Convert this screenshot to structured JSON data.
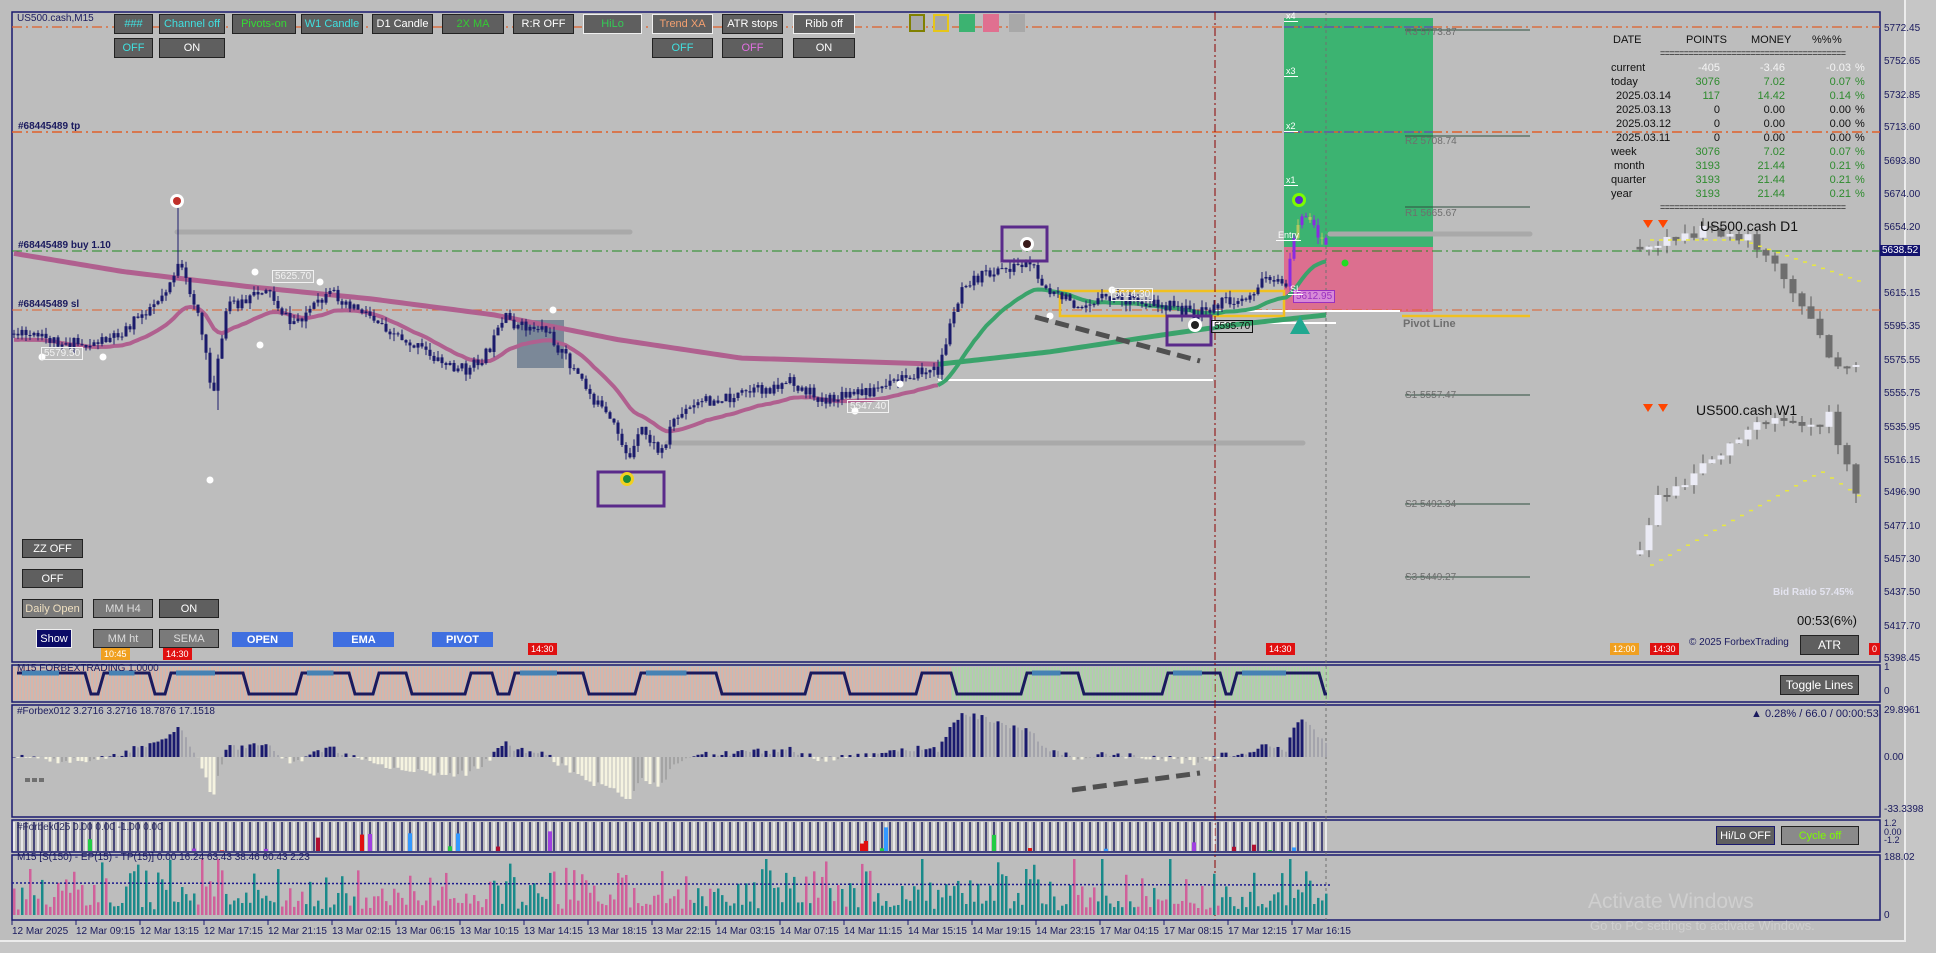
{
  "window": {
    "title": "US500.cash,M15"
  },
  "toolbar": {
    "row1": [
      {
        "label": "###",
        "color": "#40e0e0"
      },
      {
        "label": "Channel off",
        "color": "#40e0e0"
      },
      {
        "label": "Pivots-on",
        "color": "#33dd33"
      },
      {
        "label": "W1 Candle",
        "color": "#40e0e0"
      },
      {
        "label": "D1 Candle",
        "color": "#ffffff"
      },
      {
        "label": "2X MA",
        "color": "#33cc33"
      },
      {
        "label": "R:R OFF",
        "color": "#ffffff"
      },
      {
        "label": "HiLo",
        "color": "#33cc55"
      },
      {
        "label": "Trend XA",
        "color": "#f4a070"
      },
      {
        "label": "ATR stops",
        "color": "#ffffff"
      },
      {
        "label": "Ribb off",
        "color": "#ffffff"
      }
    ],
    "row2": [
      {
        "label": "OFF",
        "color": "#40e0e0"
      },
      {
        "label": "ON",
        "color": "#ffffff"
      },
      {
        "label": "OFF",
        "color": "#40e0e0"
      },
      {
        "label": "OFF",
        "color": "#e070e0"
      },
      {
        "label": "ON",
        "color": "#ffffff"
      }
    ],
    "swatches": [
      "#808000",
      "#e6c619",
      "#3cb371",
      "#e07090",
      "#a8a8a8"
    ]
  },
  "orders": {
    "tp": "#68445489 tp",
    "buy": "#68445489 buy 1.10",
    "sl": "#68445489 sl"
  },
  "price_labels": [
    "5579.50",
    "5625.70",
    "5547.40",
    "5614.30",
    "5595.70",
    "5612.95"
  ],
  "risk_reward": [
    "x4",
    "x3",
    "x2",
    "x1",
    "Entry",
    "SL"
  ],
  "pivots": {
    "r3": "R3 5773.87",
    "r2": "R2 5708.74",
    "r1": "R1 5665.67",
    "pivot": "Pivot Line",
    "s1": "S1 5557.47",
    "s2": "S2 5492.34",
    "s3": "S3 5449.27"
  },
  "stats_table": {
    "headers": [
      "DATE",
      "POINTS",
      "MONEY",
      "%%",
      "%"
    ],
    "separator": "=======================================",
    "rows": [
      {
        "date": "current",
        "points": "-405",
        "money": "-3.46",
        "pct": "-0.03",
        "unit": "%",
        "color": "#f4f4f4"
      },
      {
        "date": "today",
        "points": "3076",
        "money": "7.02",
        "pct": "0.07",
        "unit": "%",
        "color": "#2e8b2e"
      },
      {
        "date": "2025.03.14",
        "points": "117",
        "money": "14.42",
        "pct": "0.14",
        "unit": "%",
        "color": "#2e8b2e"
      },
      {
        "date": "2025.03.13",
        "points": "0",
        "money": "0.00",
        "pct": "0.00",
        "unit": "%",
        "color": "#111111"
      },
      {
        "date": "2025.03.12",
        "points": "0",
        "money": "0.00",
        "pct": "0.00",
        "unit": "%",
        "color": "#111111"
      },
      {
        "date": "2025.03.11",
        "points": "0",
        "money": "0.00",
        "pct": "0.00",
        "unit": "%",
        "color": "#111111"
      },
      {
        "date": "week",
        "points": "3076",
        "money": "7.02",
        "pct": "0.07",
        "unit": "%",
        "color": "#2e8b2e"
      },
      {
        "date": "month",
        "points": "3193",
        "money": "21.44",
        "pct": "0.21",
        "unit": "%",
        "color": "#2e8b2e"
      },
      {
        "date": "quarter",
        "points": "3193",
        "money": "21.44",
        "pct": "0.21",
        "unit": "%",
        "color": "#2e8b2e"
      },
      {
        "date": "year",
        "points": "3193",
        "money": "21.44",
        "pct": "0.21",
        "unit": "%",
        "color": "#2e8b2e"
      }
    ]
  },
  "mini_charts": {
    "d1": "US500.cash D1",
    "w1": "US500.cash W1"
  },
  "price_axis": [
    "5772.45",
    "5752.65",
    "5732.85",
    "5713.60",
    "5693.80",
    "5674.00",
    "5654.20",
    "5615.15",
    "5595.35",
    "5575.55",
    "5555.75",
    "5535.95",
    "5516.15",
    "5496.90",
    "5477.10",
    "5457.30",
    "5437.50",
    "5417.70",
    "5398.45"
  ],
  "current_price": "5638.52",
  "info": {
    "bid_ratio": "Bid Ratio 57.45%",
    "timer": "00:53(6%)",
    "copyright": "© 2025 ForbexTrading",
    "atr_button": "ATR"
  },
  "left_panel": {
    "zz": "ZZ OFF",
    "off": "OFF",
    "daily_open": "Daily Open",
    "mm_h4": "MM H4",
    "on": "ON",
    "show": "Show",
    "mm_ht": "MM ht",
    "sema": "SEMA",
    "open": "OPEN",
    "ema": "EMA",
    "pivot": "PIVOT"
  },
  "time_tags": [
    {
      "label": "10:45",
      "color": "#f0a020"
    },
    {
      "label": "14:30",
      "color": "#e01010"
    },
    {
      "label": "14:30",
      "color": "#e01010"
    },
    {
      "label": "14:30",
      "color": "#e01010"
    },
    {
      "label": "12:00",
      "color": "#f0a020"
    },
    {
      "label": "14:30",
      "color": "#e01010"
    },
    {
      "label": "0",
      "color": "#e01010"
    }
  ],
  "subwindows": {
    "sub1": {
      "label": "M15 FORBEXTRADING 1.0000",
      "axis": [
        "1",
        "0"
      ],
      "button": "Toggle Lines"
    },
    "sub2": {
      "label": "#Forbex012 3.2716 3.2716 18.7876 17.1518",
      "status": "▲ 0.28% / 66.0 / 00:00:53",
      "axis": [
        "29.8961",
        "0.00",
        "-33.3398"
      ]
    },
    "sub3": {
      "label": "#Forbex025 0.00 0.00 -1.00 0.00",
      "axis": [
        "1.2",
        "0.00",
        "-1.2"
      ],
      "hilo_button": "Hi/Lo OFF",
      "cycle_button": "Cycle off"
    },
    "sub4": {
      "label": "M15 [S(150) - EP(15) - TP(15)] 0.00 16.24 63.43 38.46 60.43 2.23",
      "axis": [
        "188.02",
        "0"
      ]
    }
  },
  "time_axis": [
    "12 Mar 2025",
    "12 Mar 09:15",
    "12 Mar 13:15",
    "12 Mar 17:15",
    "12 Mar 21:15",
    "13 Mar 02:15",
    "13 Mar 06:15",
    "13 Mar 10:15",
    "13 Mar 14:15",
    "13 Mar 18:15",
    "13 Mar 22:15",
    "14 Mar 03:15",
    "14 Mar 07:15",
    "14 Mar 11:15",
    "14 Mar 15:15",
    "14 Mar 19:15",
    "14 Mar 23:15",
    "17 Mar 04:15",
    "17 Mar 08:15",
    "17 Mar 12:15",
    "17 Mar 16:15"
  ],
  "watermark": {
    "title": "Activate Windows",
    "subtitle": "Go to PC settings to activate Windows."
  }
}
